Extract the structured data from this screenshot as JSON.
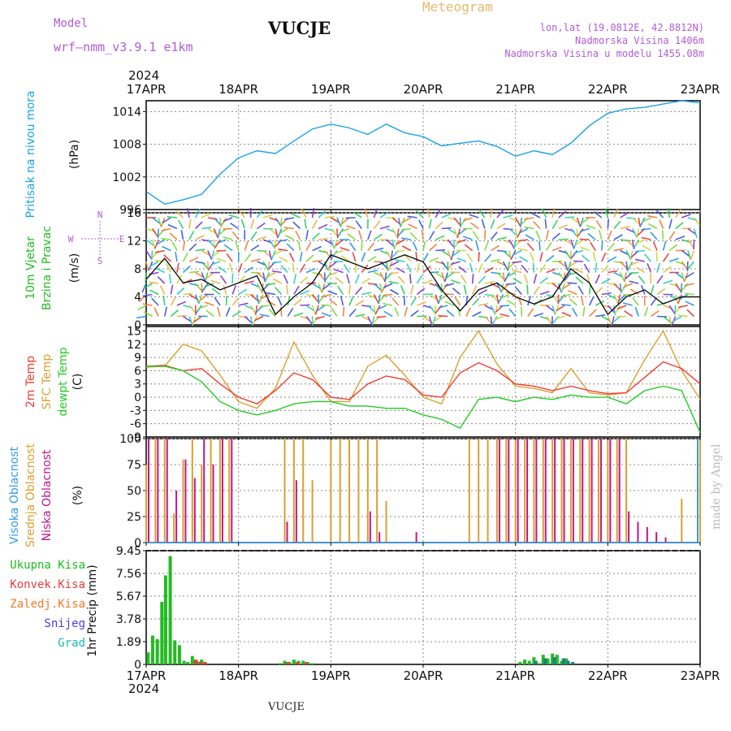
{
  "header": {
    "model_label": "Model",
    "model_name": "wrf–nmm_v3.9.1  e1km",
    "station": "VUCJE",
    "meteogram": "Meteogram",
    "lonlat": "lon,lat (19.0812E, 42.8812N)",
    "elevation": "Nadmorska Visina 1406m",
    "model_elevation": "Nadmorska Visina u modelu 1455.08m",
    "year": "2024",
    "footer_station": "VUCJE",
    "made_by": "made by Angel"
  },
  "colors": {
    "pressure": "#1aa3e8",
    "t2m": "#f03c32",
    "tsfc": "#d9a030",
    "dewpt": "#22cc22",
    "high_cloud": "#3399ee",
    "mid_cloud": "#d9a030",
    "low_cloud": "#c0168a",
    "total_precip": "#22bb22",
    "conv_precip": "#e83c3c",
    "freezing_precip": "#f07a2a",
    "snow": "#4a3ee0",
    "hail": "#1ab8b8",
    "model_text": "#b05cd6",
    "meteogram_text": "#e8b86a"
  },
  "chart_data": [
    {
      "type": "line",
      "panel": "pressure",
      "ylabel_lines": [
        "Pritisak na nivou mora",
        "(hPa)"
      ],
      "ylim": [
        996,
        1016
      ],
      "yticks": [
        996,
        1002,
        1008,
        1014
      ],
      "x_days": [
        "17APR",
        "18APR",
        "19APR",
        "20APR",
        "21APR",
        "22APR",
        "23APR"
      ],
      "grid": true,
      "series": [
        {
          "name": "Pritisak na nivou mora",
          "x": [
            0,
            0.2,
            0.4,
            0.6,
            0.8,
            1.0,
            1.2,
            1.4,
            1.6,
            1.8,
            2.0,
            2.2,
            2.4,
            2.6,
            2.8,
            3.0,
            3.2,
            3.4,
            3.6,
            3.8,
            4.0,
            4.2,
            4.4,
            4.6,
            4.8,
            5.0,
            5.2,
            5.4,
            5.6,
            5.8,
            6.0
          ],
          "values": [
            999.3,
            997.0,
            997.8,
            998.8,
            1002.5,
            1005.5,
            1006.8,
            1006.3,
            1008.6,
            1010.8,
            1011.7,
            1011.0,
            1009.8,
            1011.7,
            1010.1,
            1009.4,
            1007.7,
            1008.2,
            1008.6,
            1007.6,
            1005.8,
            1006.8,
            1006.1,
            1008.2,
            1011.4,
            1013.7,
            1014.5,
            1014.8,
            1015.4,
            1016.0,
            1015.6
          ]
        }
      ]
    },
    {
      "type": "line",
      "panel": "wind",
      "ylabel_lines": [
        "10m Vjetar",
        "Brzina i Pravac",
        "(m/s)"
      ],
      "compass": [
        "N",
        "E",
        "S",
        "W"
      ],
      "ylim": [
        0,
        16
      ],
      "yticks": [
        0,
        4,
        8,
        12,
        16
      ],
      "grid": true,
      "series": [
        {
          "name": "10m Vjetar",
          "x": [
            0,
            0.2,
            0.4,
            0.6,
            0.8,
            1.0,
            1.2,
            1.4,
            1.6,
            1.8,
            2.0,
            2.2,
            2.4,
            2.6,
            2.8,
            3.0,
            3.2,
            3.4,
            3.6,
            3.8,
            4.0,
            4.2,
            4.4,
            4.6,
            4.8,
            5.0,
            5.2,
            5.4,
            5.6,
            5.8,
            6.0
          ],
          "values": [
            6.5,
            9.5,
            6.0,
            6.5,
            5.0,
            6.0,
            7.0,
            1.5,
            4.0,
            6.0,
            10.0,
            9.0,
            8.0,
            9.0,
            10.0,
            9.0,
            5.0,
            2.0,
            5.0,
            6.0,
            4.0,
            3.0,
            4.0,
            8.0,
            6.0,
            1.5,
            4.0,
            5.0,
            3.0,
            4.0,
            4.0
          ]
        }
      ]
    },
    {
      "type": "line",
      "panel": "temperature",
      "ylabel_lines": [
        "2m Temp",
        "SFC Temp",
        "dewpt Temp",
        "(C)"
      ],
      "ylim": [
        -9,
        16
      ],
      "yticks": [
        -9,
        -6,
        -3,
        0,
        3,
        6,
        9,
        12,
        15
      ],
      "grid": true,
      "series": [
        {
          "name": "2m Temp",
          "x": [
            0,
            0.2,
            0.4,
            0.6,
            0.8,
            1.0,
            1.2,
            1.4,
            1.6,
            1.8,
            2.0,
            2.2,
            2.4,
            2.6,
            2.8,
            3.0,
            3.2,
            3.4,
            3.6,
            3.8,
            4.0,
            4.2,
            4.4,
            4.6,
            4.8,
            5.0,
            5.2,
            5.4,
            5.6,
            5.8,
            6.0
          ],
          "values": [
            7.0,
            7.2,
            6.0,
            6.5,
            3.0,
            0.0,
            -1.5,
            1.5,
            5.5,
            4.0,
            0.0,
            -0.5,
            3.0,
            4.8,
            4.0,
            0.5,
            0.0,
            5.5,
            7.8,
            6.0,
            3.0,
            2.5,
            1.5,
            2.5,
            1.5,
            0.8,
            1.0,
            4.5,
            8.0,
            6.5,
            3.0
          ]
        },
        {
          "name": "SFC Temp",
          "x": [
            0,
            0.2,
            0.4,
            0.6,
            0.8,
            1.0,
            1.2,
            1.4,
            1.6,
            1.8,
            2.0,
            2.2,
            2.4,
            2.6,
            2.8,
            3.0,
            3.2,
            3.4,
            3.6,
            3.8,
            4.0,
            4.2,
            4.4,
            4.6,
            4.8,
            5.0,
            5.2,
            5.4,
            5.6,
            5.8,
            6.0
          ],
          "values": [
            6.8,
            7.0,
            12.0,
            10.5,
            5.0,
            -1.0,
            -2.5,
            2.0,
            12.5,
            5.0,
            -1.0,
            -1.0,
            7.0,
            9.5,
            5.0,
            0.0,
            -1.5,
            9.0,
            15.0,
            7.5,
            2.5,
            2.0,
            1.0,
            6.5,
            1.0,
            0.5,
            1.0,
            8.5,
            15.0,
            6.0,
            -0.5
          ]
        },
        {
          "name": "dewpt Temp",
          "x": [
            0,
            0.2,
            0.4,
            0.6,
            0.8,
            1.0,
            1.2,
            1.4,
            1.6,
            1.8,
            2.0,
            2.2,
            2.4,
            2.6,
            2.8,
            3.0,
            3.2,
            3.4,
            3.6,
            3.8,
            4.0,
            4.2,
            4.4,
            4.6,
            4.8,
            5.0,
            5.2,
            5.4,
            5.6,
            5.8,
            6.0
          ],
          "values": [
            7.0,
            7.0,
            6.0,
            3.5,
            -1.0,
            -3.0,
            -4.0,
            -3.0,
            -1.5,
            -1.0,
            -1.0,
            -2.0,
            -2.0,
            -2.5,
            -2.5,
            -4.0,
            -5.0,
            -7.0,
            -0.5,
            0.0,
            -1.0,
            0.0,
            -0.5,
            0.5,
            0.0,
            0.0,
            -1.5,
            1.5,
            2.5,
            1.5,
            -8.0
          ]
        }
      ]
    },
    {
      "type": "bar",
      "panel": "cloud",
      "ylabel_lines": [
        "Visoka Oblacnost",
        "Srednja Oblacnost",
        "Niska Oblacnost",
        "(%)"
      ],
      "ylim": [
        0,
        100
      ],
      "yticks": [
        0,
        25,
        50,
        75,
        100
      ],
      "grid": true,
      "series": [
        {
          "name": "Visoka Oblacnost",
          "x": [
            0.0,
            0.2,
            0.4,
            0.6,
            0.8,
            1.0,
            1.2,
            1.4,
            1.6,
            1.8,
            2.0,
            2.2,
            2.4,
            2.6,
            2.8,
            3.0,
            3.2,
            3.4,
            3.6,
            3.8,
            4.0,
            4.2,
            4.4,
            4.6,
            4.8,
            5.0,
            5.2,
            5.4,
            5.6,
            5.8,
            6.0
          ],
          "values": [
            0,
            0,
            0,
            0,
            0,
            0,
            0,
            0,
            0,
            0,
            0,
            0,
            0,
            0,
            0,
            0,
            0,
            0,
            0,
            0,
            0,
            0,
            0,
            0,
            0,
            0,
            0,
            0,
            0,
            0,
            100
          ]
        },
        {
          "name": "Srednja Oblacnost",
          "x": [
            0.0,
            0.1,
            0.2,
            0.3,
            0.4,
            0.5,
            0.6,
            0.7,
            0.8,
            0.9,
            1.0,
            1.1,
            1.2,
            1.3,
            1.4,
            1.5,
            1.6,
            1.7,
            1.8,
            1.9,
            2.0,
            2.1,
            2.2,
            2.3,
            2.4,
            2.5,
            2.6,
            2.7,
            2.8,
            2.9,
            3.0,
            3.1,
            3.2,
            3.3,
            3.4,
            3.5,
            3.6,
            3.7,
            3.8,
            3.9,
            4.0,
            4.1,
            4.2,
            4.3,
            4.4,
            4.5,
            4.6,
            4.7,
            4.8,
            4.9,
            5.0,
            5.1,
            5.2,
            5.3,
            5.4,
            5.5,
            5.6,
            5.7,
            5.8,
            5.9,
            6.0
          ],
          "values": [
            75,
            100,
            100,
            28,
            80,
            100,
            75,
            100,
            100,
            100,
            0,
            0,
            0,
            0,
            0,
            100,
            100,
            100,
            60,
            0,
            100,
            100,
            100,
            100,
            100,
            100,
            40,
            0,
            0,
            0,
            0,
            0,
            0,
            0,
            0,
            100,
            100,
            100,
            100,
            100,
            100,
            100,
            100,
            100,
            100,
            100,
            100,
            100,
            100,
            100,
            100,
            100,
            100,
            0,
            0,
            0,
            0,
            0,
            42,
            0,
            100
          ]
        },
        {
          "name": "Niska Oblacnost",
          "x": [
            0.0,
            0.1,
            0.2,
            0.3,
            0.4,
            0.5,
            0.6,
            0.7,
            0.8,
            0.9,
            1.0,
            1.1,
            1.2,
            1.3,
            1.4,
            1.5,
            1.6,
            1.7,
            1.8,
            1.9,
            2.0,
            2.1,
            2.2,
            2.3,
            2.4,
            2.5,
            2.6,
            2.7,
            2.8,
            2.9,
            3.0,
            3.1,
            3.2,
            3.3,
            3.4,
            3.5,
            3.6,
            3.7,
            3.8,
            3.9,
            4.0,
            4.1,
            4.2,
            4.3,
            4.4,
            4.5,
            4.6,
            4.7,
            4.8,
            4.9,
            5.0,
            5.1,
            5.2,
            5.3,
            5.4,
            5.5,
            5.6,
            5.7,
            5.8,
            5.9,
            6.0
          ],
          "values": [
            100,
            100,
            100,
            50,
            80,
            62,
            100,
            75,
            100,
            100,
            0,
            0,
            0,
            0,
            0,
            20,
            60,
            0,
            0,
            0,
            0,
            0,
            0,
            0,
            30,
            10,
            0,
            0,
            0,
            10,
            0,
            0,
            0,
            0,
            0,
            0,
            0,
            0,
            100,
            100,
            100,
            100,
            100,
            100,
            100,
            100,
            100,
            100,
            100,
            100,
            100,
            100,
            30,
            20,
            15,
            10,
            5,
            0,
            0,
            0,
            0
          ]
        }
      ]
    },
    {
      "type": "bar",
      "panel": "precip",
      "ylabel_lines": [
        "1hr Precip (mm)"
      ],
      "legend_labels": [
        "Ukupna Kisa",
        "Konvek.Kisa",
        "Zaledj.Kisa",
        "Snijeg",
        "Grad"
      ],
      "ylim": [
        0,
        9.45
      ],
      "yticks": [
        0,
        1.89,
        3.78,
        5.67,
        7.56,
        9.45
      ],
      "ytick_labels": [
        "0",
        "1.89",
        "3.78",
        "5.67",
        "7.56",
        "9.45"
      ],
      "grid": true,
      "series": [
        {
          "name": "Ukupna Kisa",
          "x": [
            0.02,
            0.07,
            0.12,
            0.17,
            0.21,
            0.26,
            0.31,
            0.36,
            0.41,
            0.45,
            0.5,
            0.55,
            0.6,
            0.64,
            1.45,
            1.5,
            1.55,
            1.6,
            1.65,
            1.7,
            1.75,
            1.8,
            4.05,
            4.1,
            4.15,
            4.2,
            4.25,
            4.3,
            4.35,
            4.4,
            4.45,
            4.5,
            4.55
          ],
          "values": [
            1.0,
            2.4,
            2.1,
            5.2,
            7.4,
            9.0,
            2.0,
            1.6,
            0.3,
            0.2,
            0.7,
            0.3,
            0.4,
            0.2,
            0.1,
            0.3,
            0.2,
            0.4,
            0.3,
            0.3,
            0.2,
            0.1,
            0.2,
            0.4,
            0.3,
            0.6,
            0.1,
            0.8,
            0.5,
            0.9,
            0.8,
            0.3,
            0.5
          ]
        },
        {
          "name": "Konvek.Kisa",
          "x": [
            0.5,
            0.55,
            0.6,
            1.5,
            1.6,
            1.7
          ],
          "values": [
            0.4,
            0.2,
            0.2,
            0.2,
            0.2,
            0.2
          ]
        },
        {
          "name": "Grad",
          "x": [
            4.15,
            4.25,
            4.35,
            4.45,
            4.5,
            4.55
          ],
          "values": [
            0.3,
            0.5,
            0.6,
            0.5,
            0.3,
            0.2
          ]
        }
      ]
    }
  ]
}
